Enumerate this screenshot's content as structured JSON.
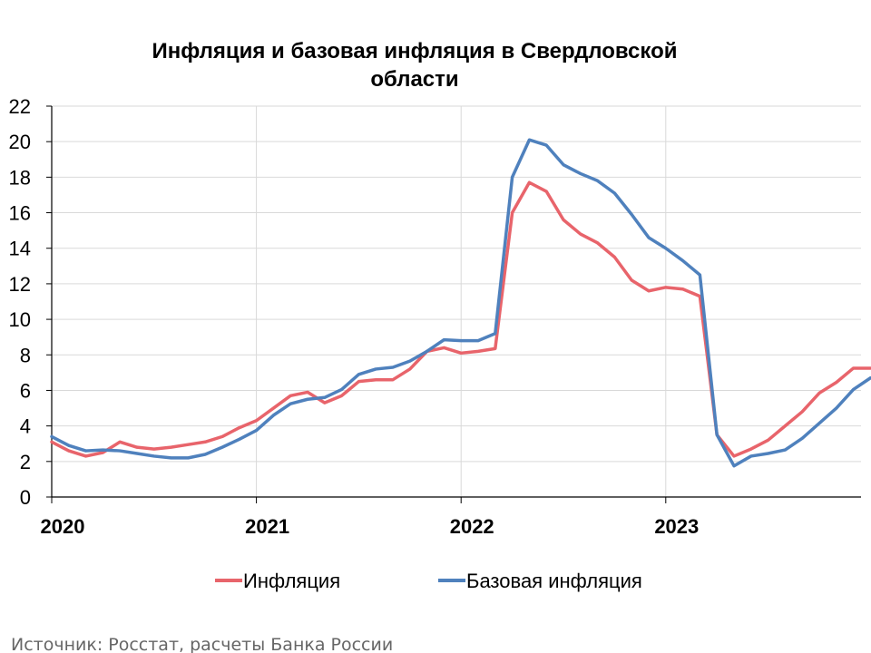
{
  "chart_data": {
    "type": "line",
    "title_lines": [
      "Инфляция и базовая инфляция в Свердловской",
      "области"
    ],
    "xlabel": "",
    "ylabel": "",
    "ylim": [
      0,
      22
    ],
    "yticks": [
      0,
      2,
      4,
      6,
      8,
      10,
      12,
      14,
      16,
      18,
      20,
      22
    ],
    "xlim": [
      0,
      47
    ],
    "xticks": [
      {
        "value": 0,
        "label": "2020"
      },
      {
        "value": 12,
        "label": "2021"
      },
      {
        "value": 24,
        "label": "2022"
      },
      {
        "value": 36,
        "label": "2023"
      }
    ],
    "grid": true,
    "legend_position": "bottom",
    "x_unit": "month index from January 2020",
    "series": [
      {
        "name": "Инфляция",
        "color": "#E8646B",
        "values": [
          3.1,
          2.6,
          2.3,
          2.5,
          3.1,
          2.8,
          2.7,
          2.8,
          2.95,
          3.1,
          3.4,
          3.9,
          4.3,
          5.0,
          5.7,
          5.9,
          5.3,
          5.7,
          6.5,
          6.6,
          6.6,
          7.2,
          8.2,
          8.4,
          8.1,
          8.2,
          8.35,
          16.0,
          17.7,
          17.2,
          15.6,
          14.8,
          14.3,
          13.5,
          12.2,
          11.6,
          11.8,
          11.7,
          11.3,
          3.5,
          2.3,
          2.7,
          3.2,
          4.0,
          4.8,
          5.85,
          6.45,
          7.25,
          7.25
        ]
      },
      {
        "name": "Базовая инфляция",
        "color": "#4F81BD",
        "values": [
          3.4,
          2.9,
          2.6,
          2.65,
          2.6,
          2.45,
          2.3,
          2.2,
          2.2,
          2.4,
          2.8,
          3.25,
          3.75,
          4.6,
          5.25,
          5.5,
          5.6,
          6.05,
          6.9,
          7.2,
          7.3,
          7.65,
          8.2,
          8.85,
          8.8,
          8.8,
          9.2,
          18.0,
          20.1,
          19.8,
          18.7,
          18.2,
          17.8,
          17.1,
          15.9,
          14.6,
          14.0,
          13.3,
          12.5,
          3.5,
          1.75,
          2.3,
          2.45,
          2.65,
          3.3,
          4.15,
          5.0,
          6.05,
          6.7
        ]
      }
    ]
  },
  "source": "Источник: Росстат, расчеты Банка России"
}
